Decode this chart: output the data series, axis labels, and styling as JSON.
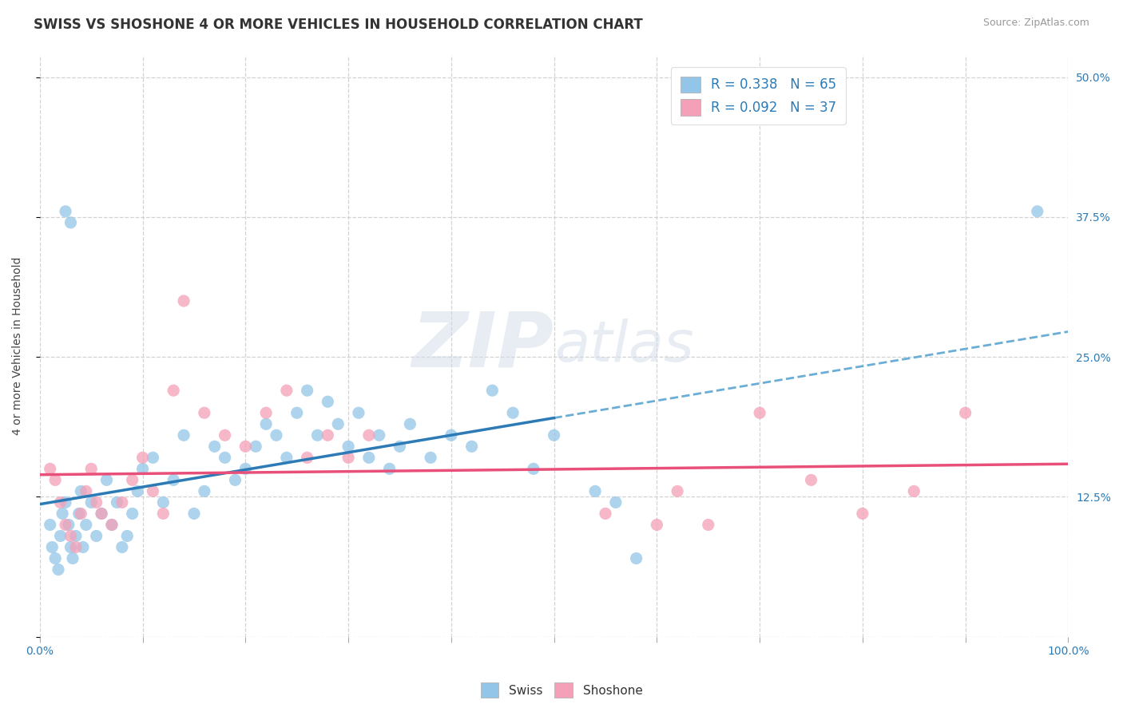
{
  "title": "SWISS VS SHOSHONE 4 OR MORE VEHICLES IN HOUSEHOLD CORRELATION CHART",
  "source_text": "Source: ZipAtlas.com",
  "ylabel": "4 or more Vehicles in Household",
  "swiss_R": 0.338,
  "swiss_N": 65,
  "shoshone_R": 0.092,
  "shoshone_N": 37,
  "swiss_color": "#92c5e8",
  "shoshone_color": "#f4a0b8",
  "trend_swiss_solid_color": "#2c7bb6",
  "trend_swiss_dash_color": "#6aaed6",
  "trend_shoshone_color": "#e8507a",
  "xlim": [
    0,
    100
  ],
  "ylim": [
    0,
    52
  ],
  "yticks": [
    0,
    12.5,
    25.0,
    37.5,
    50.0
  ],
  "xticks": [
    0,
    10,
    20,
    30,
    40,
    50,
    60,
    70,
    80,
    90,
    100
  ],
  "background_color": "#ffffff",
  "grid_color": "#c8c8c8",
  "watermark_color": "#d0dce8",
  "title_fontsize": 12,
  "label_fontsize": 10,
  "tick_fontsize": 10,
  "source_fontsize": 9,
  "swiss_x": [
    1.0,
    1.2,
    1.5,
    1.8,
    2.0,
    2.2,
    2.5,
    2.8,
    3.0,
    3.2,
    3.5,
    3.8,
    4.0,
    4.2,
    4.5,
    5.0,
    5.5,
    6.0,
    6.5,
    7.0,
    7.5,
    8.0,
    8.5,
    9.0,
    9.5,
    10.0,
    11.0,
    12.0,
    13.0,
    14.0,
    15.0,
    16.0,
    17.0,
    18.0,
    19.0,
    20.0,
    21.0,
    22.0,
    23.0,
    24.0,
    25.0,
    26.0,
    27.0,
    28.0,
    29.0,
    30.0,
    31.0,
    32.0,
    33.0,
    34.0,
    35.0,
    36.0,
    38.0,
    40.0,
    42.0,
    44.0,
    46.0,
    48.0,
    50.0,
    54.0,
    56.0,
    58.0,
    97.0,
    2.5,
    3.0
  ],
  "swiss_y": [
    10.0,
    8.0,
    7.0,
    6.0,
    9.0,
    11.0,
    12.0,
    10.0,
    8.0,
    7.0,
    9.0,
    11.0,
    13.0,
    8.0,
    10.0,
    12.0,
    9.0,
    11.0,
    14.0,
    10.0,
    12.0,
    8.0,
    9.0,
    11.0,
    13.0,
    15.0,
    16.0,
    12.0,
    14.0,
    18.0,
    11.0,
    13.0,
    17.0,
    16.0,
    14.0,
    15.0,
    17.0,
    19.0,
    18.0,
    16.0,
    20.0,
    22.0,
    18.0,
    21.0,
    19.0,
    17.0,
    20.0,
    16.0,
    18.0,
    15.0,
    17.0,
    19.0,
    16.0,
    18.0,
    17.0,
    22.0,
    20.0,
    15.0,
    18.0,
    13.0,
    12.0,
    7.0,
    38.0,
    38.0,
    37.0
  ],
  "shoshone_x": [
    1.0,
    1.5,
    2.0,
    2.5,
    3.0,
    3.5,
    4.0,
    4.5,
    5.0,
    5.5,
    6.0,
    7.0,
    8.0,
    9.0,
    10.0,
    11.0,
    12.0,
    13.0,
    14.0,
    16.0,
    18.0,
    20.0,
    22.0,
    24.0,
    26.0,
    28.0,
    30.0,
    32.0,
    55.0,
    60.0,
    62.0,
    65.0,
    70.0,
    75.0,
    80.0,
    85.0,
    90.0
  ],
  "shoshone_y": [
    15.0,
    14.0,
    12.0,
    10.0,
    9.0,
    8.0,
    11.0,
    13.0,
    15.0,
    12.0,
    11.0,
    10.0,
    12.0,
    14.0,
    16.0,
    13.0,
    11.0,
    22.0,
    30.0,
    20.0,
    18.0,
    17.0,
    20.0,
    22.0,
    16.0,
    18.0,
    16.0,
    18.0,
    11.0,
    10.0,
    13.0,
    10.0,
    20.0,
    14.0,
    11.0,
    13.0,
    20.0
  ]
}
